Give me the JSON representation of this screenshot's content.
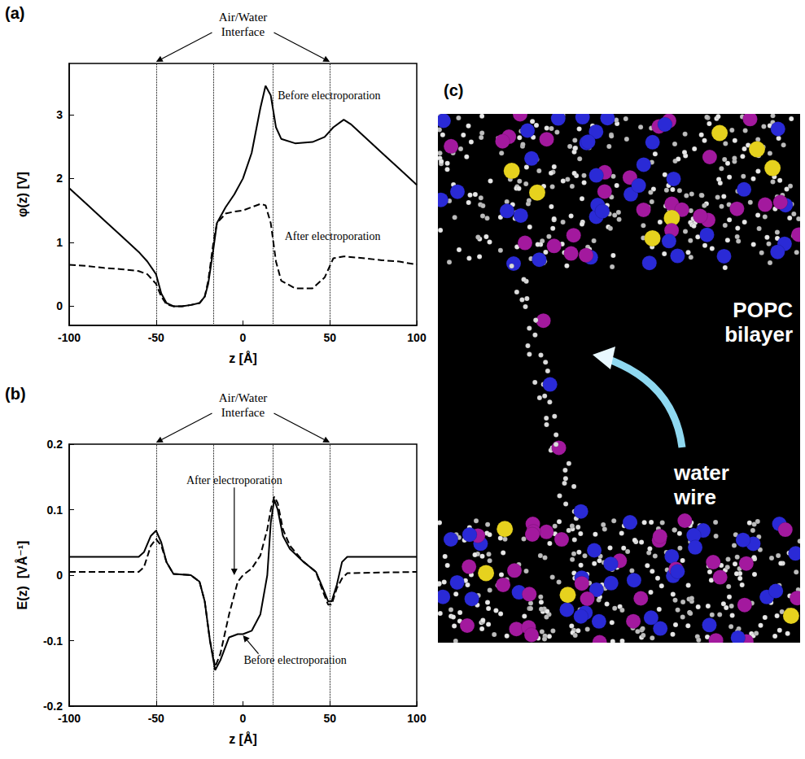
{
  "chart_data": [
    {
      "type": "line",
      "panel": "(a)",
      "annotation": {
        "text": "Air/Water Interface",
        "x": [
          -50,
          50
        ]
      },
      "vlines": [
        -50,
        -17,
        17,
        50
      ],
      "x_label": "z [Å]",
      "y_label": "φ(z) [V]",
      "xlim": [
        -100,
        100
      ],
      "xticks": [
        -100,
        -50,
        0,
        50,
        100
      ],
      "ylim": [
        -0.3,
        3.8
      ],
      "yticks": [
        0,
        1,
        2,
        3
      ],
      "grid": false,
      "x": [
        -100,
        -90,
        -80,
        -70,
        -60,
        -55,
        -50,
        -47,
        -44,
        -40,
        -35,
        -30,
        -25,
        -22,
        -20,
        -17,
        -15,
        -10,
        -5,
        0,
        5,
        10,
        13,
        16,
        19,
        22,
        30,
        40,
        47,
        52,
        58,
        62,
        70,
        80,
        90,
        100
      ],
      "series": [
        {
          "name": "Before electroporation",
          "color": "#000000",
          "line_style": "solid",
          "values": [
            1.85,
            1.6,
            1.35,
            1.1,
            0.85,
            0.7,
            0.5,
            0.2,
            0.05,
            0.0,
            0.0,
            0.02,
            0.05,
            0.15,
            0.35,
            0.9,
            1.3,
            1.55,
            1.75,
            2.0,
            2.4,
            3.1,
            3.45,
            3.3,
            2.8,
            2.62,
            2.55,
            2.57,
            2.65,
            2.8,
            2.92,
            2.85,
            2.65,
            2.4,
            2.15,
            1.9
          ]
        },
        {
          "name": "After electroporation",
          "color": "#000000",
          "line_style": "dashed",
          "values": [
            0.65,
            0.63,
            0.6,
            0.58,
            0.55,
            0.5,
            0.35,
            0.15,
            0.03,
            0.0,
            0.0,
            0.02,
            0.05,
            0.15,
            0.4,
            1.0,
            1.3,
            1.45,
            1.48,
            1.5,
            1.55,
            1.6,
            1.58,
            1.3,
            0.7,
            0.4,
            0.28,
            0.28,
            0.45,
            0.75,
            0.78,
            0.77,
            0.75,
            0.72,
            0.7,
            0.65
          ]
        }
      ]
    },
    {
      "type": "line",
      "panel": "(b)",
      "annotation": {
        "text": "Air/Water Interface",
        "x": [
          -50,
          50
        ]
      },
      "vlines": [
        -50,
        -17,
        17,
        50
      ],
      "x_label": "z [Å]",
      "y_label": "E(z)  [VÅ⁻¹]",
      "xlim": [
        -100,
        100
      ],
      "xticks": [
        -100,
        -50,
        0,
        50,
        100
      ],
      "ylim": [
        -0.2,
        0.2
      ],
      "yticks": [
        -0.2,
        -0.1,
        0,
        0.1,
        0.2
      ],
      "grid": false,
      "x": [
        -100,
        -60,
        -57,
        -53,
        -50,
        -47,
        -44,
        -40,
        -30,
        -25,
        -22,
        -19,
        -16,
        -13,
        -8,
        -3,
        0,
        5,
        10,
        14,
        16,
        18,
        20,
        23,
        27,
        35,
        42,
        46,
        49,
        51,
        54,
        57,
        60,
        100
      ],
      "series": [
        {
          "name": "Before electroporation",
          "color": "#000000",
          "line_style": "solid",
          "values": [
            0.028,
            0.028,
            0.035,
            0.06,
            0.068,
            0.05,
            0.02,
            0.002,
            0,
            -0.01,
            -0.04,
            -0.1,
            -0.145,
            -0.13,
            -0.095,
            -0.09,
            -0.09,
            -0.085,
            -0.06,
            0,
            0.08,
            0.115,
            0.1,
            0.06,
            0.04,
            0.02,
            0.005,
            -0.02,
            -0.04,
            -0.04,
            -0.015,
            0.02,
            0.028,
            0.028
          ]
        },
        {
          "name": "After electroporation",
          "color": "#000000",
          "line_style": "dashed",
          "values": [
            0.005,
            0.005,
            0.012,
            0.045,
            0.055,
            0.045,
            0.02,
            0.002,
            0,
            -0.01,
            -0.04,
            -0.1,
            -0.14,
            -0.12,
            -0.06,
            -0.01,
            0,
            0.01,
            0.03,
            0.07,
            0.1,
            0.12,
            0.11,
            0.07,
            0.045,
            0.02,
            0.005,
            -0.025,
            -0.045,
            -0.045,
            -0.02,
            -0.005,
            0.003,
            0.005
          ]
        }
      ]
    }
  ],
  "panel_c": {
    "panel": "(c)",
    "labels": [
      "POPC bilayer",
      "water wire"
    ]
  }
}
